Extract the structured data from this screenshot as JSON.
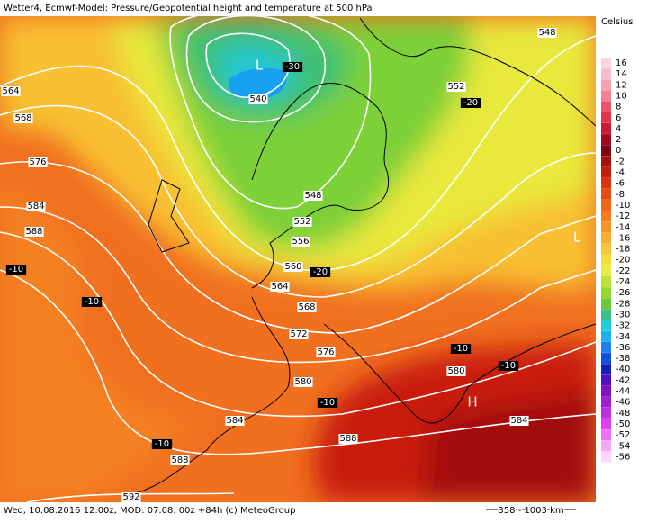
{
  "header": {
    "title": "Wetter4, Ecmwf-Model: Pressure/Geopotential height and temperature at 500 hPa"
  },
  "legend": {
    "title": "Celsius",
    "items": [
      {
        "label": "16",
        "color": "#fad4e2"
      },
      {
        "label": "14",
        "color": "#f7bccb"
      },
      {
        "label": "12",
        "color": "#f4a2b2"
      },
      {
        "label": "10",
        "color": "#f08494"
      },
      {
        "label": "8",
        "color": "#e85468"
      },
      {
        "label": "6",
        "color": "#e03448"
      },
      {
        "label": "4",
        "color": "#c81c30"
      },
      {
        "label": "2",
        "color": "#a00a20"
      },
      {
        "label": "0",
        "color": "#800014"
      },
      {
        "label": "-2",
        "color": "#a81010"
      },
      {
        "label": "-4",
        "color": "#c41e0c"
      },
      {
        "label": "-6",
        "color": "#dc3410"
      },
      {
        "label": "-8",
        "color": "#e84c12"
      },
      {
        "label": "-10",
        "color": "#f06418"
      },
      {
        "label": "-12",
        "color": "#f47c20"
      },
      {
        "label": "-14",
        "color": "#f89428"
      },
      {
        "label": "-16",
        "color": "#f8ac30"
      },
      {
        "label": "-18",
        "color": "#f8c438"
      },
      {
        "label": "-20",
        "color": "#f8dc3c"
      },
      {
        "label": "-22",
        "color": "#e4ec3c"
      },
      {
        "label": "-24",
        "color": "#bce436"
      },
      {
        "label": "-26",
        "color": "#94d830"
      },
      {
        "label": "-28",
        "color": "#6cc838"
      },
      {
        "label": "-30",
        "color": "#38c088"
      },
      {
        "label": "-32",
        "color": "#20d0d8"
      },
      {
        "label": "-34",
        "color": "#20b0f0"
      },
      {
        "label": "-36",
        "color": "#2080f0"
      },
      {
        "label": "-38",
        "color": "#1050e0"
      },
      {
        "label": "-40",
        "color": "#1020b8"
      },
      {
        "label": "-42",
        "color": "#5010c0"
      },
      {
        "label": "-44",
        "color": "#8010c0"
      },
      {
        "label": "-46",
        "color": "#a020d0"
      },
      {
        "label": "-48",
        "color": "#c030e0"
      },
      {
        "label": "-50",
        "color": "#e040f0"
      },
      {
        "label": "-52",
        "color": "#f070f8"
      },
      {
        "label": "-54",
        "color": "#f8a4f8"
      },
      {
        "label": "-56",
        "color": "#fcd4fc"
      }
    ]
  },
  "map": {
    "contours": [
      "548",
      "564",
      "568",
      "576",
      "584",
      "588",
      "552",
      "540",
      "548",
      "552",
      "556",
      "560",
      "564",
      "568",
      "572",
      "576",
      "580",
      "580",
      "584",
      "584",
      "588",
      "588",
      "592"
    ],
    "temperatures": [
      "-30",
      "-20",
      "-20",
      "-10",
      "-10",
      "-10",
      "-10",
      "-10",
      "-10"
    ],
    "centers": [
      "H",
      "L",
      "L"
    ]
  },
  "footer": {
    "left": "Wed, 10.08.2016 12:00z, MOD: 07.08. 00z +84h (c) MeteoGroup",
    "scale": "358 - 1003 km"
  }
}
